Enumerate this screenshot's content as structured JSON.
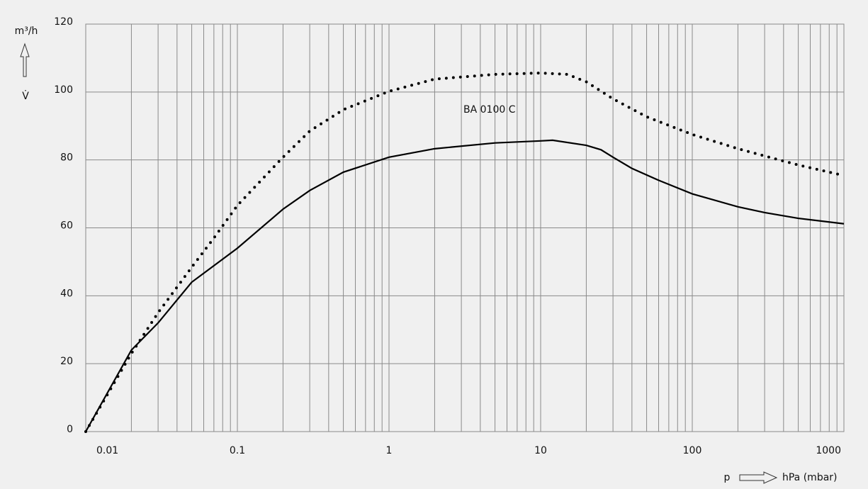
{
  "chart_data": {
    "type": "line",
    "y_label": "m³/h",
    "y_symbol": "V̇",
    "x_symbol": "p",
    "x_unit": "hPa (mbar)",
    "annotation": "BA 0100 C",
    "xscale": "log",
    "grid": true,
    "xlim": [
      0.01,
      1000
    ],
    "xticks": [
      0.01,
      0.1,
      1,
      10,
      100,
      1000
    ],
    "ylim": [
      0,
      120
    ],
    "yticks": [
      0,
      20,
      40,
      60,
      80,
      100,
      120
    ],
    "series": [
      {
        "color": "#000000",
        "style": "solid",
        "x": [
          0.01,
          0.02,
          0.03,
          0.05,
          0.1,
          0.2,
          0.3,
          0.5,
          1,
          2,
          5,
          10,
          12,
          20,
          25,
          30,
          40,
          60,
          100,
          200,
          300,
          500,
          1000
        ],
        "values": [
          0,
          24,
          32,
          44,
          54,
          65.5,
          71,
          76.4,
          80.8,
          83.3,
          85,
          85.6,
          85.8,
          84.3,
          83,
          80.8,
          77.5,
          74,
          70,
          66.2,
          64.5,
          62.8,
          61.2
        ]
      },
      {
        "color": "#000000",
        "style": "dotted",
        "x": [
          0.01,
          0.02,
          0.03,
          0.05,
          0.07,
          0.1,
          0.2,
          0.3,
          0.5,
          1,
          2,
          5,
          10,
          15,
          20,
          30,
          50,
          100,
          200,
          500,
          1000
        ],
        "values": [
          0,
          23,
          35,
          48.4,
          57,
          66.6,
          80.8,
          88.5,
          94.8,
          100.2,
          103.8,
          105.2,
          105.6,
          105.2,
          103,
          98,
          92.7,
          87.5,
          83.3,
          78.5,
          75.4
        ]
      }
    ]
  }
}
